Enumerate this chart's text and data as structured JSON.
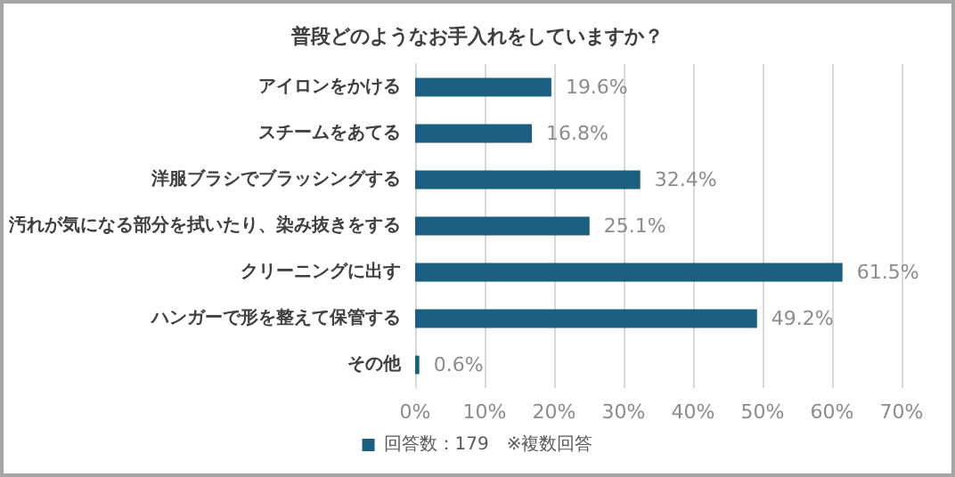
{
  "chart_data": {
    "type": "bar",
    "orientation": "horizontal",
    "title": "普段どのようなお手入れをしていますか？",
    "categories": [
      "アイロンをかける",
      "スチームをあてる",
      "洋服ブラシでブラッシングする",
      "汚れが気になる部分を拭いたり、染み抜きをする",
      "クリーニングに出す",
      "ハンガーで形を整えて保管する",
      "その他"
    ],
    "series": [
      {
        "name": "回答数：179　※複数回答",
        "color": "#1a5e80",
        "values": [
          19.6,
          16.8,
          32.4,
          25.1,
          61.5,
          49.2,
          0.6
        ],
        "value_labels": [
          "19.6%",
          "16.8%",
          "32.4%",
          "25.1%",
          "61.5%",
          "49.2%",
          "0.6%"
        ]
      }
    ],
    "xlim": [
      0,
      70
    ],
    "xticks": [
      {
        "value": 0,
        "label": "0%"
      },
      {
        "value": 10,
        "label": "10%"
      },
      {
        "value": 20,
        "label": "20%"
      },
      {
        "value": 30,
        "label": "30%"
      },
      {
        "value": 40,
        "label": "40%"
      },
      {
        "value": 50,
        "label": "50%"
      },
      {
        "value": 60,
        "label": "60%"
      },
      {
        "value": 70,
        "label": "70%"
      }
    ],
    "grid": "x",
    "legend": "bottom"
  }
}
